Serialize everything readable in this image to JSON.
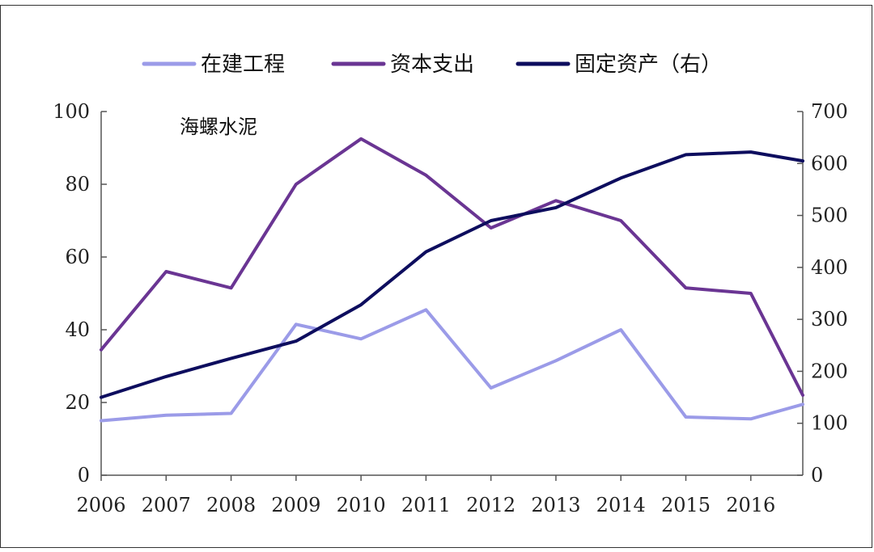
{
  "chart_data": {
    "type": "line",
    "title": "",
    "annotation": "海螺水泥",
    "categories": [
      "2006",
      "2007",
      "2008",
      "2009",
      "2010",
      "2011",
      "2012",
      "2013",
      "2014",
      "2015",
      "2016"
    ],
    "x": [
      2006,
      2007,
      2008,
      2009,
      2010,
      2011,
      2012,
      2013,
      2014,
      2015,
      2016,
      2016.8
    ],
    "y_left": {
      "ylim": [
        0,
        100
      ],
      "ticks": [
        0,
        20,
        40,
        60,
        80,
        100
      ]
    },
    "y_right": {
      "ylim": [
        0,
        700
      ],
      "ticks": [
        0,
        100,
        200,
        300,
        400,
        500,
        600,
        700
      ]
    },
    "legend_position": "top",
    "grid": false,
    "series": [
      {
        "name": "在建工程",
        "axis": "left",
        "color": "#9b9be8",
        "values": [
          15,
          16.5,
          17,
          41.5,
          37.5,
          45.5,
          24,
          31.5,
          40,
          16,
          15.5,
          19.5
        ]
      },
      {
        "name": "资本支出",
        "axis": "left",
        "color": "#6a3593",
        "values": [
          34.5,
          56,
          51.5,
          80,
          92.5,
          82.5,
          68,
          75.5,
          70,
          51.5,
          50,
          22
        ]
      },
      {
        "name": "固定资产（右）",
        "axis": "right",
        "color": "#0d0d5e",
        "values": [
          150,
          190,
          225,
          258,
          328,
          430,
          490,
          515,
          572,
          617,
          622,
          605
        ]
      }
    ]
  }
}
